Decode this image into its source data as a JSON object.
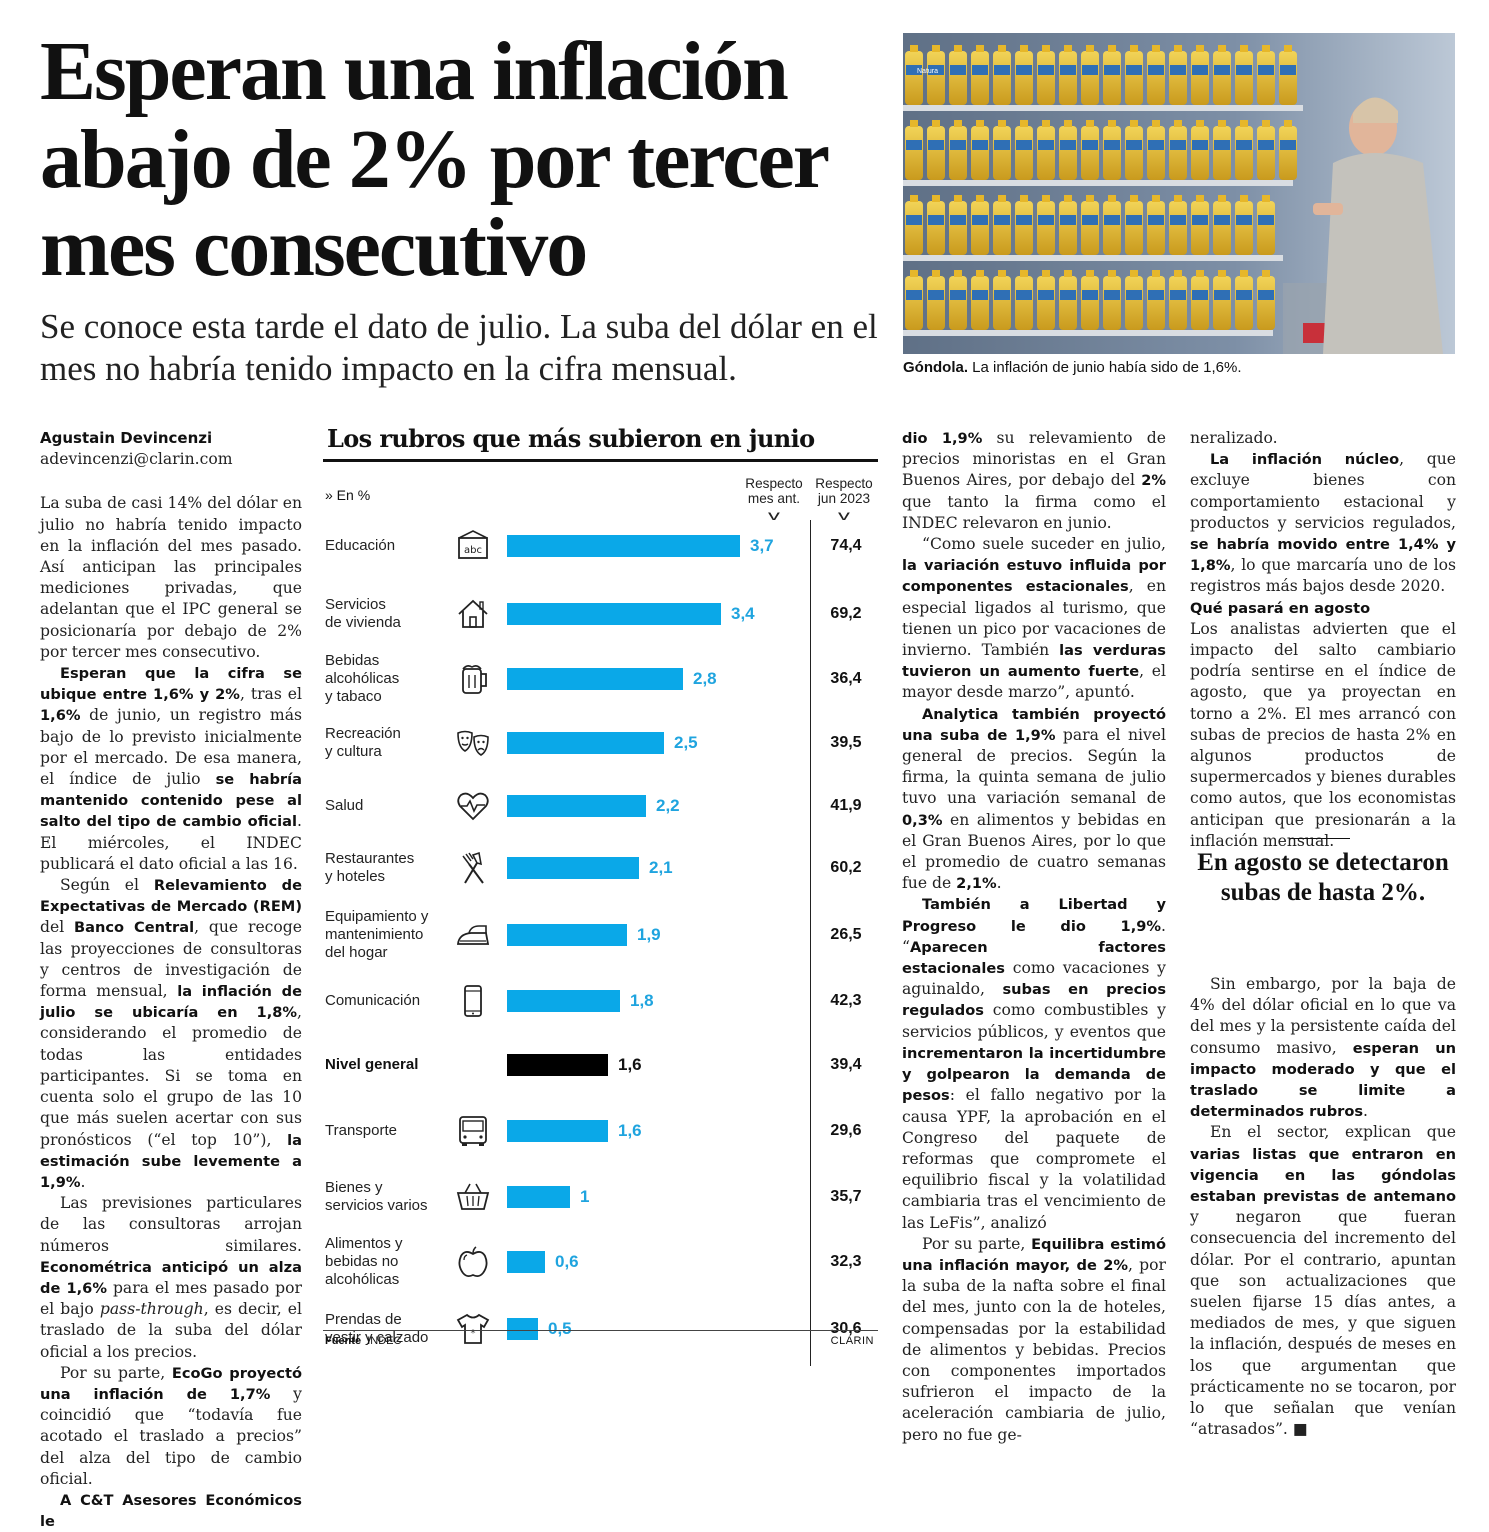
{
  "headline": "Esperan una inflación abajo de 2% por tercer mes consecutivo",
  "subheadline": "Se conoce esta tarde el dato de julio. La suba del dólar en el mes no habría tenido impacto en la cifra mensual.",
  "photo": {
    "caption_bold": "Góndola.",
    "caption_text": " La inflación de junio había sido de 1,6%.",
    "shelf_label": "Natura"
  },
  "byline": {
    "name": "Agustain Devincenzi",
    "email": "adevincenzi@clarin.com"
  },
  "chart_data": {
    "type": "bar",
    "title": "Los rubros que más subieron en junio",
    "unit_label": "» En %",
    "col_head_mes": "Respecto mes ant.",
    "col_head_jun": "Respecto jun 2023",
    "categories": [
      "Educación",
      "Servicios de vivienda",
      "Bebidas alcohólicas y tabaco",
      "Recreación y cultura",
      "Salud",
      "Restaurantes y hoteles",
      "Equipamiento y mantenimiento del hogar",
      "Comunicación",
      "Nivel general",
      "Transporte",
      "Bienes y servicios varios",
      "Alimentos y bebidas no alcohólicas",
      "Prendas de vestir y calzado"
    ],
    "series": [
      {
        "name": "Respecto mes ant.",
        "values": [
          3.7,
          3.4,
          2.8,
          2.5,
          2.2,
          2.1,
          1.9,
          1.8,
          1.6,
          1.6,
          1.0,
          0.6,
          0.5
        ]
      },
      {
        "name": "Respecto jun 2023",
        "values": [
          74.4,
          69.2,
          36.4,
          39.5,
          41.9,
          60.2,
          26.5,
          42.3,
          39.4,
          29.6,
          35.7,
          32.3,
          30.6
        ]
      }
    ],
    "rows": [
      {
        "label": "Educación",
        "icon": "abc-board-icon",
        "mes": "3,7",
        "jun": "74,4",
        "value": 3.7,
        "general": false
      },
      {
        "label": "Servicios\nde vivienda",
        "icon": "house-icon",
        "mes": "3,4",
        "jun": "69,2",
        "value": 3.4,
        "general": false
      },
      {
        "label": "Bebidas\nalcohólicas\ny tabaco",
        "icon": "beer-mug-icon",
        "mes": "2,8",
        "jun": "36,4",
        "value": 2.8,
        "general": false
      },
      {
        "label": "Recreación\ny cultura",
        "icon": "theater-masks-icon",
        "mes": "2,5",
        "jun": "39,5",
        "value": 2.5,
        "general": false
      },
      {
        "label": "Salud",
        "icon": "heart-pulse-icon",
        "mes": "2,2",
        "jun": "41,9",
        "value": 2.2,
        "general": false
      },
      {
        "label": "Restaurantes\ny hoteles",
        "icon": "fork-knife-icon",
        "mes": "2,1",
        "jun": "60,2",
        "value": 2.1,
        "general": false
      },
      {
        "label": "Equipamiento y\nmantenimiento\ndel hogar",
        "icon": "iron-icon",
        "mes": "1,9",
        "jun": "26,5",
        "value": 1.9,
        "general": false
      },
      {
        "label": "Comunicación",
        "icon": "smartphone-icon",
        "mes": "1,8",
        "jun": "42,3",
        "value": 1.8,
        "general": false
      },
      {
        "label": "Nivel general",
        "icon": "",
        "mes": "1,6",
        "jun": "39,4",
        "value": 1.6,
        "general": true
      },
      {
        "label": "Transporte",
        "icon": "bus-icon",
        "mes": "1,6",
        "jun": "29,6",
        "value": 1.6,
        "general": false
      },
      {
        "label": "Bienes y\nservicios varios",
        "icon": "basket-icon",
        "mes": "1",
        "jun": "35,7",
        "value": 1.0,
        "general": false
      },
      {
        "label": "Alimentos y\nbebidas no\nalcohólicas",
        "icon": "apple-icon",
        "mes": "0,6",
        "jun": "32,3",
        "value": 0.6,
        "general": false
      },
      {
        "label": "Prendas de\nvestir y calzado",
        "icon": "tshirt-icon",
        "mes": "0,5",
        "jun": "30,6",
        "value": 0.5,
        "general": false
      }
    ],
    "source_label": "Fuente",
    "source_value": "INDEC",
    "brand": "CLARIN"
  },
  "col1": {
    "p1": "La suba de casi 14% del dólar en julio no habría tenido impacto en la inflación del mes pasado. Así anticipan las principales mediciones privadas, que adelantan que el IPC general se posicionaría por debajo de 2% por tercer mes consecutivo.",
    "p2_b1": "Esperan que la cifra se ubique entre 1,6% y 2%",
    "p2_t1": ", tras el ",
    "p2_b2": "1,6%",
    "p2_t2": " de junio, un registro más bajo de lo previsto inicialmente por el mercado. De esa manera, el índice de julio ",
    "p2_b3": "se habría mantenido contenido pese al salto del tipo de cambio oficial",
    "p2_t3": ". El miércoles, el INDEC publicará el dato oficial a las 16.",
    "p3_t1": "Según el ",
    "p3_b1": "Relevamiento de Expectativas de Mercado (REM)",
    "p3_t2": " del ",
    "p3_b2": "Banco Central",
    "p3_t3": ", que recoge las proyecciones de consultoras y centros de investigación de forma mensual, ",
    "p3_b3": "la inflación de julio se ubicaría en 1,8%",
    "p3_t4": ", considerando el promedio de todas las entidades participantes. Si se toma en cuenta solo el grupo de las 10 que más suelen acertar con sus pronósticos (“el top 10”), ",
    "p3_b4": "la estimación sube levemente a 1,9%",
    "p3_t5": ".",
    "p4_t1": "Las previsiones particulares de las consultoras arrojan números similares. ",
    "p4_b1": "Econométrica anticipó un alza de 1,6%",
    "p4_t2": " para el mes pasado por el bajo ",
    "p4_i1": "pass-through",
    "p4_t3": ", es decir, el traslado de la suba del dólar oficial a los precios.",
    "p5_t1": "Por su parte, ",
    "p5_b1": "EcoGo proyectó una inflación de 1,7%",
    "p5_t2": " y coincidió que “todavía fue acotado el traslado a precios” del alza del tipo de cambio oficial.",
    "p6_b1": "A C&T Asesores Económicos le"
  },
  "col3": {
    "p1_b1": "dio 1,9%",
    "p1_t1": " su relevamiento de precios minoristas en el Gran Buenos Aires, por debajo del ",
    "p1_b2": "2%",
    "p1_t2": " que tanto la firma como el INDEC relevaron en junio.",
    "p2_t1": "“Como suele suceder en julio, ",
    "p2_b1": "la variación estuvo influida por componentes estacionales",
    "p2_t2": ", en especial ligados al turismo, que tienen un pico por vacaciones de invierno. También ",
    "p2_b2": "las verduras tuvieron un aumento fuerte",
    "p2_t3": ", el mayor desde marzo”, apuntó.",
    "p3_b1": "Analytica también proyectó una suba de 1,9%",
    "p3_t1": " para el nivel general de precios. Según la firma, la quinta semana de julio tuvo una variación semanal de ",
    "p3_b2": "0,3%",
    "p3_t2": " en alimentos y bebidas en el Gran Buenos Aires, por lo que el promedio de cuatro semanas fue de ",
    "p3_b3": "2,1%",
    "p3_t3": ".",
    "p4_b1": "También a Libertad y Progreso le dio 1,9%",
    "p4_t1": ". “",
    "p4_b2": "Aparecen factores estacionales",
    "p4_t2": " como vacaciones y aguinaldo, ",
    "p4_b3": "subas en precios regulados",
    "p4_t3": " como combustibles y servicios públicos, y eventos que ",
    "p4_b4": "incrementaron la incertidumbre y golpearon la demanda de pesos",
    "p4_t4": ": el fallo negativo por la causa YPF, la aprobación en el Congreso del paquete de reformas que compromete el equilibrio fiscal y la volatilidad cambiaria tras el vencimiento de las LeFis”, analizó",
    "p5_t1": "Por su parte, ",
    "p5_b1": "Equilibra estimó una inflación mayor, de 2%",
    "p5_t2": ", por la suba de la nafta sobre el final del mes, junto con la de hoteles, compensadas por la estabilidad de alimentos y bebidas. Precios con componentes importados sufrieron el impacto de la aceleración cambiaria de julio, pero no fue ge-"
  },
  "col4": {
    "p0_t1": "neralizado.",
    "p1_b1": "La inflación núcleo",
    "p1_t1": ", que excluye bienes con comportamiento estacional y productos y servicios regulados, ",
    "p1_b2": "se habría movido entre 1,4% y 1,8%",
    "p1_t2": ", lo que marcaría uno de los registros más bajos desde 2020.",
    "subhead": "Qué pasará en agosto",
    "p2_t1": "Los analistas advierten que el impacto del salto cambiario podría sentirse en el índice de agosto, que ya proyectan en torno a 2%. El mes arrancó con subas de precios de hasta 2% en algunos productos de supermercados y bienes durables como autos, que los economistas anticipan que presionarán a la inflación mensual.",
    "pullquote": "En agosto se detectaron subas de hasta 2%.",
    "p3_t1": "Sin embargo, por la baja de 4% del dólar oficial en lo que va del mes y la persistente caída del consumo masivo, ",
    "p3_b1": "esperan un impacto moderado y que el traslado se limite a determinados rubros",
    "p3_t2": ".",
    "p4_t1": "En el sector, explican que ",
    "p4_b1": "varias listas que entraron en vigencia en las góndolas estaban previstas de antemano",
    "p4_t2": " y negaron que fueran consecuencia del incremento del dólar. Por el contrario, apuntan que son actualizaciones que suelen fijarse 15 días antes, a mediados de mes, y que siguen la inflación, después de meses en los que argumentan que prácticamente no se tocaron, por lo que señalan que venían “atrasados”.",
    "end_mark": "■"
  },
  "colors": {
    "bar": "#0aa8e8",
    "bar_general": "#000000",
    "value_text": "#1fa4df"
  }
}
